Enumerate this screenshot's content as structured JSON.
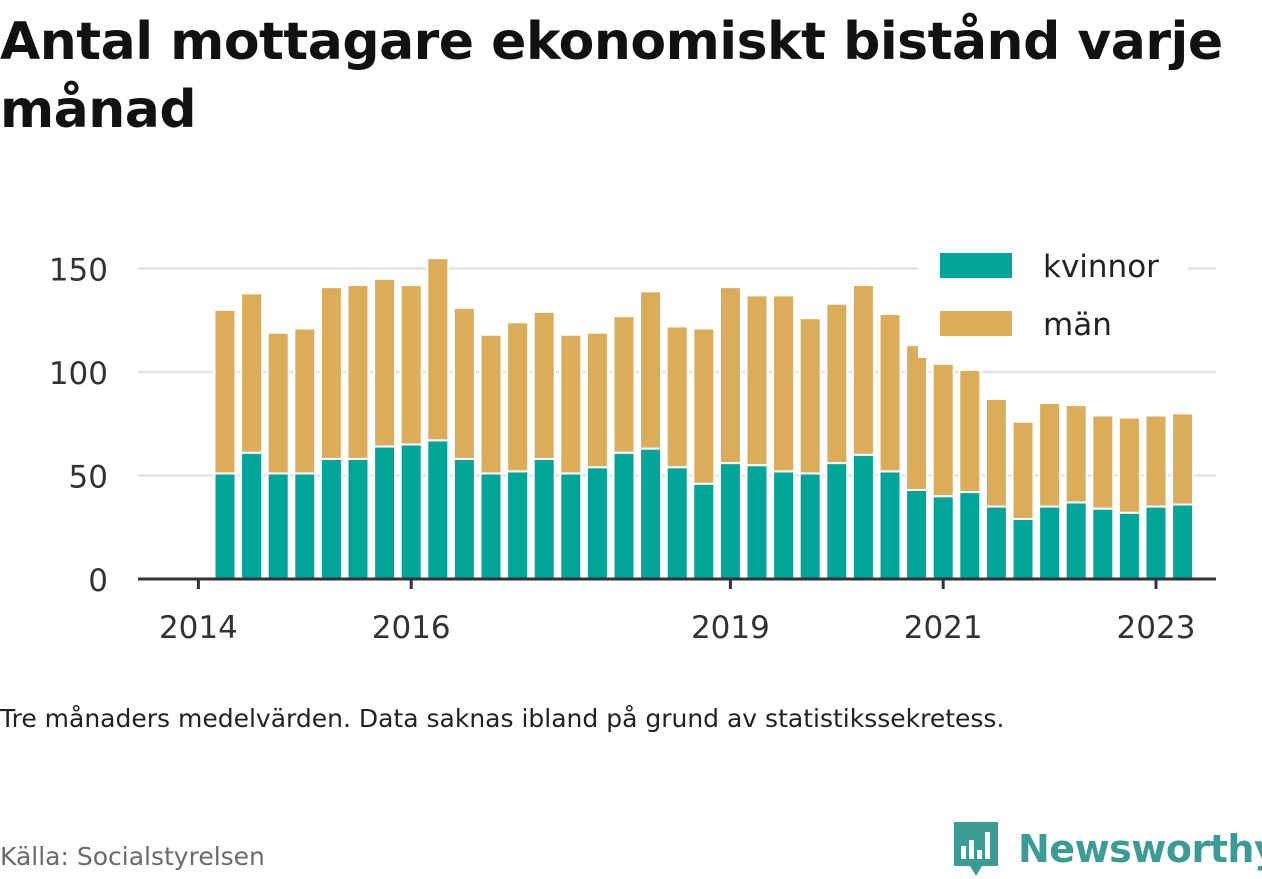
{
  "title": "Antal mottagare ekonomiskt bistånd varje månad",
  "footnote": "Tre månaders medelvärden. Data saknas ibland på grund av statistikssekretess.",
  "source": "Källa: Socialstyrelsen",
  "brand": {
    "name": "Newsworthy",
    "icon": "bar-chart-speech-bubble-icon",
    "color": "#3a9c94"
  },
  "chart_data": {
    "type": "bar",
    "stacked": true,
    "x_unit": "quarter",
    "x": [
      "2014-Q2",
      "2014-Q3",
      "2014-Q4",
      "2015-Q1",
      "2015-Q2",
      "2015-Q3",
      "2015-Q4",
      "2016-Q1",
      "2016-Q2",
      "2016-Q3",
      "2016-Q4",
      "2017-Q1",
      "2017-Q2",
      "2017-Q3",
      "2017-Q4",
      "2018-Q1",
      "2018-Q2",
      "2018-Q3",
      "2018-Q4",
      "2019-Q1",
      "2019-Q2",
      "2019-Q3",
      "2019-Q4",
      "2020-Q1",
      "2020-Q2",
      "2020-Q3",
      "2020-Q4",
      "2021-Q1",
      "2021-Q2",
      "2021-Q3",
      "2021-Q4",
      "2022-Q1",
      "2022-Q2",
      "2022-Q3",
      "2022-Q4",
      "2023-Q1",
      "2023-Q2"
    ],
    "series": [
      {
        "name": "kvinnor",
        "color": "#00a59a",
        "values": [
          51,
          61,
          51,
          51,
          58,
          58,
          64,
          65,
          67,
          58,
          51,
          52,
          58,
          51,
          54,
          61,
          63,
          54,
          46,
          56,
          55,
          52,
          51,
          56,
          60,
          52,
          43,
          40,
          42,
          35,
          29,
          35,
          37,
          34,
          32,
          35,
          36
        ]
      },
      {
        "name": "män",
        "color": "#dbad5b",
        "values": [
          79,
          77,
          68,
          70,
          83,
          84,
          81,
          77,
          88,
          73,
          67,
          72,
          71,
          67,
          65,
          66,
          76,
          68,
          75,
          85,
          82,
          85,
          75,
          77,
          82,
          76,
          70,
          64,
          59,
          52,
          47,
          50,
          47,
          45,
          46,
          44,
          44
        ]
      }
    ],
    "x_tick_labels": [
      "2014",
      "2016",
      "2019",
      "2021",
      "2023"
    ],
    "y_ticks": [
      0,
      50,
      100,
      150
    ],
    "ylim": [
      0,
      160
    ],
    "grid": true,
    "legend_position": "top-right"
  }
}
